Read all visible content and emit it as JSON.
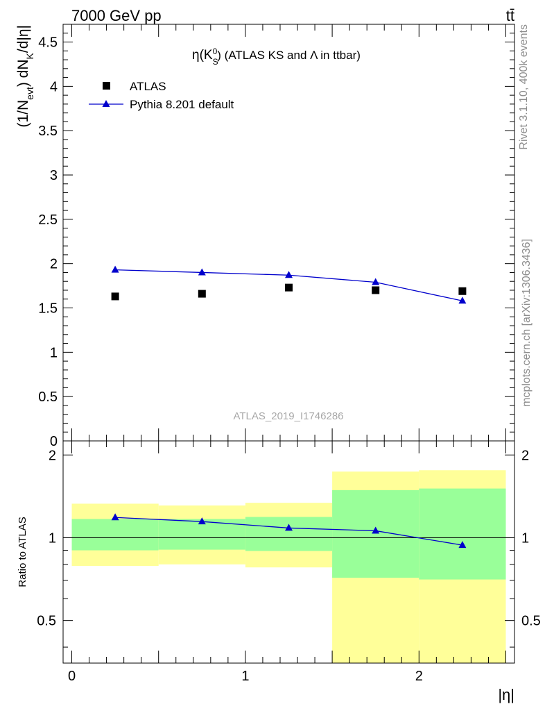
{
  "header": {
    "left": "7000 GeV pp",
    "right": "tt̄"
  },
  "side_text": {
    "rivet": "Rivet 3.1.10,  400k events",
    "mcplots": "mcplots.cern.ch [arXiv:1306.3436]"
  },
  "watermark": "ATLAS_2019_I1746286",
  "chart_data": [
    {
      "type": "scatter",
      "title_parts": [
        "η(K",
        "S",
        "0",
        ") (ATLAS KS and Λ in ttbar)"
      ],
      "ylabel_parts": [
        "(1/N",
        "evt",
        ") dN",
        "K",
        "/d|η|"
      ],
      "xlabel": "",
      "xlim": [
        -0.05,
        2.55
      ],
      "ylim": [
        0,
        4.7
      ],
      "yticks": [
        0,
        0.5,
        1,
        1.5,
        2,
        2.5,
        3,
        3.5,
        4,
        4.5
      ],
      "ytick_labels": [
        "0",
        "0.5",
        "1",
        "1.5",
        "2",
        "2.5",
        "3",
        "3.5",
        "4",
        "4.5"
      ],
      "legend": {
        "position": "top-left"
      },
      "series": [
        {
          "name": "ATLAS",
          "marker": "square",
          "color": "#000000",
          "x": [
            0.25,
            0.75,
            1.25,
            1.75,
            2.25
          ],
          "y": [
            1.63,
            1.66,
            1.73,
            1.7,
            1.69
          ]
        },
        {
          "name": "Pythia 8.201 default",
          "marker": "triangle",
          "line": true,
          "color": "#0000cc",
          "x": [
            0.25,
            0.75,
            1.25,
            1.75,
            2.25
          ],
          "y": [
            1.93,
            1.9,
            1.87,
            1.79,
            1.58
          ]
        }
      ]
    },
    {
      "type": "scatter",
      "ylabel": "Ratio to ATLAS",
      "xlabel": "|η|",
      "xlim": [
        -0.05,
        2.55
      ],
      "ylim": [
        0.35,
        2.25
      ],
      "yticks": [
        0.5,
        1,
        2
      ],
      "ytick_labels": [
        "0.5",
        "1",
        "2"
      ],
      "xticks": [
        0,
        1,
        2
      ],
      "xtick_labels": [
        "0",
        "1",
        "2"
      ],
      "reference_line": 1,
      "bands": [
        {
          "x0": 0.0,
          "x1": 0.5,
          "inner": [
            0.9,
            1.17
          ],
          "outer": [
            0.79,
            1.33
          ]
        },
        {
          "x0": 0.5,
          "x1": 1.0,
          "inner": [
            0.905,
            1.17
          ],
          "outer": [
            0.8,
            1.31
          ]
        },
        {
          "x0": 1.0,
          "x1": 1.5,
          "inner": [
            0.895,
            1.19
          ],
          "outer": [
            0.78,
            1.34
          ]
        },
        {
          "x0": 1.5,
          "x1": 2.0,
          "inner": [
            0.715,
            1.49
          ],
          "outer": [
            0.3,
            1.74
          ]
        },
        {
          "x0": 2.0,
          "x1": 2.5,
          "inner": [
            0.705,
            1.51
          ],
          "outer": [
            0.3,
            1.76
          ]
        }
      ],
      "band_colors": {
        "inner": "#99ff99",
        "outer": "#ffff99"
      },
      "series": [
        {
          "name": "Pythia 8.201 default",
          "marker": "triangle",
          "line": true,
          "color": "#0000cc",
          "x": [
            0.25,
            0.75,
            1.25,
            1.75,
            2.25
          ],
          "y": [
            1.185,
            1.145,
            1.085,
            1.06,
            0.94
          ]
        }
      ]
    }
  ]
}
